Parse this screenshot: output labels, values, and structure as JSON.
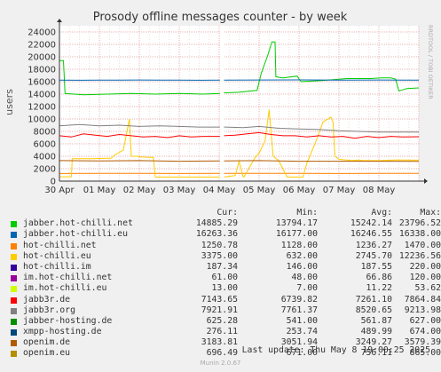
{
  "chart_data": {
    "type": "line",
    "title": "Prosody offline messages counter - by week",
    "ylabel": "users",
    "ylim": [
      0,
      25000
    ],
    "yticks": [
      0,
      2000,
      4000,
      6000,
      8000,
      10000,
      12000,
      14000,
      16000,
      18000,
      20000,
      22000,
      24000
    ],
    "ytick_labels": [
      "0",
      "2000",
      "4000",
      "6000",
      "8000",
      "10000",
      "12000",
      "14000",
      "16000",
      "18000",
      "20000",
      "22000",
      "24000"
    ],
    "xlim": [
      0,
      9
    ],
    "xtick_labels": [
      "30 Apr",
      "01 May",
      "02 May",
      "03 May",
      "04 May",
      "05 May",
      "06 May",
      "07 May",
      "08 May"
    ],
    "gap": [
      4.02,
      4.12
    ],
    "grid": true,
    "columns": [
      "Cur:",
      "Min:",
      "Avg:",
      "Max:"
    ],
    "series": [
      {
        "name": "jabber.hot-chilli.net",
        "color": "#00cc00",
        "cur": "14885.29",
        "min": "13794.17",
        "avg": "15242.14",
        "max": "23796.52",
        "x": [
          0,
          0.06,
          0.1,
          0.14,
          0.6,
          1.2,
          1.8,
          2.4,
          3.0,
          3.6,
          4.02,
          4.12,
          4.5,
          4.95,
          5.05,
          5.22,
          5.32,
          5.4,
          5.42,
          5.5,
          5.6,
          5.95,
          6.05,
          6.6,
          7.2,
          7.8,
          8.05,
          8.3,
          8.42,
          8.5,
          8.55,
          8.7,
          9
        ],
        "y": [
          19400,
          19400,
          19400,
          14100,
          13900,
          14000,
          14100,
          14000,
          14100,
          14000,
          14100,
          14200,
          14300,
          14600,
          17300,
          20300,
          22400,
          22400,
          16800,
          16700,
          16600,
          16900,
          16000,
          16200,
          16500,
          16500,
          16600,
          16600,
          16400,
          14500,
          14600,
          14900,
          15000
        ]
      },
      {
        "name": "jabber.hot-chilli.eu",
        "color": "#0066b3",
        "cur": "16263.36",
        "min": "16177.00",
        "avg": "16246.55",
        "max": "16338.00",
        "x": [
          0,
          0.5,
          1,
          1.5,
          2,
          2.5,
          3,
          3.5,
          4.02,
          4.12,
          5,
          6,
          7,
          8,
          8.7,
          9
        ],
        "y": [
          16250,
          16230,
          16260,
          16240,
          16270,
          16250,
          16240,
          16230,
          16250,
          16260,
          16270,
          16280,
          16260,
          16270,
          16260,
          16260
        ]
      },
      {
        "name": "hot-chilli.net",
        "color": "#ff8000",
        "cur": "1250.78",
        "min": "1128.00",
        "avg": "1236.27",
        "max": "1470.00",
        "x": [
          0,
          1,
          2,
          3,
          4.02,
          4.12,
          5,
          6,
          7,
          8,
          9
        ],
        "y": [
          1230,
          1240,
          1250,
          1230,
          1240,
          1250,
          1260,
          1240,
          1230,
          1250,
          1250
        ]
      },
      {
        "name": "hot-chilli.eu",
        "color": "#ffcc00",
        "cur": "3375.00",
        "min": "632.00",
        "avg": "2745.70",
        "max": "12236.56",
        "x": [
          0,
          0.3,
          0.32,
          0.8,
          1.3,
          1.38,
          1.6,
          1.75,
          1.8,
          1.95,
          2.0,
          2.35,
          2.4,
          4.02,
          4.12,
          4.4,
          4.5,
          4.6,
          4.62,
          4.9,
          5.0,
          5.15,
          5.25,
          5.35,
          5.45,
          5.5,
          5.7,
          5.95,
          6.1,
          6.2,
          6.4,
          6.6,
          6.8,
          6.85,
          6.9,
          7.0,
          7.2,
          7.3,
          7.5,
          7.6,
          8.0,
          8.4,
          8.7,
          8.8,
          9
        ],
        "y": [
          700,
          700,
          3600,
          3600,
          3700,
          4200,
          5000,
          10000,
          4000,
          4000,
          3900,
          3800,
          650,
          650,
          650,
          900,
          3200,
          700,
          650,
          3800,
          4500,
          6500,
          11500,
          4000,
          3500,
          3200,
          650,
          650,
          650,
          3000,
          6000,
          9500,
          10300,
          9500,
          4000,
          3500,
          3400,
          3300,
          3400,
          3300,
          3300,
          3400,
          3400,
          3375,
          3375
        ]
      },
      {
        "name": "hot-chilli.im",
        "color": "#330099",
        "cur": "187.34",
        "min": "146.00",
        "avg": "187.55",
        "max": "220.00",
        "x": [
          0,
          9
        ],
        "y": [
          187,
          187
        ]
      },
      {
        "name": "im.hot-chilli.net",
        "color": "#990099",
        "cur": "61.00",
        "min": "48.00",
        "avg": "66.86",
        "max": "120.00",
        "x": [
          0,
          9
        ],
        "y": [
          62,
          62
        ]
      },
      {
        "name": "im.hot-chilli.eu",
        "color": "#ccff00",
        "cur": "13.00",
        "min": "7.00",
        "avg": "11.22",
        "max": "53.62",
        "x": [
          0,
          9
        ],
        "y": [
          12,
          12
        ]
      },
      {
        "name": "jabb3r.de",
        "color": "#ff0000",
        "cur": "7143.65",
        "min": "6739.82",
        "avg": "7261.10",
        "max": "7864.84",
        "x": [
          0,
          0.3,
          0.6,
          0.9,
          1.2,
          1.5,
          1.8,
          2.1,
          2.4,
          2.7,
          3.0,
          3.3,
          3.6,
          4.02,
          4.12,
          4.4,
          4.7,
          5.0,
          5.3,
          5.6,
          5.9,
          6.2,
          6.5,
          6.8,
          7.1,
          7.4,
          7.7,
          8.0,
          8.3,
          8.6,
          9
        ],
        "y": [
          7300,
          7100,
          7600,
          7400,
          7200,
          7500,
          7300,
          7100,
          7200,
          7000,
          7300,
          7100,
          7200,
          7200,
          7300,
          7400,
          7600,
          7800,
          7500,
          7300,
          7300,
          7100,
          7300,
          7100,
          7200,
          6900,
          7200,
          7000,
          7200,
          7100,
          7143
        ]
      },
      {
        "name": "jabb3r.org",
        "color": "#808080",
        "cur": "7921.91",
        "min": "7761.37",
        "avg": "8520.65",
        "max": "9213.98",
        "x": [
          0,
          0.5,
          1,
          1.5,
          2,
          2.5,
          3,
          3.5,
          4.02,
          4.12,
          4.6,
          5,
          5.5,
          6,
          6.5,
          7,
          7.5,
          8,
          8.5,
          9
        ],
        "y": [
          8900,
          9100,
          8900,
          9000,
          8800,
          8900,
          8800,
          8700,
          8700,
          8700,
          8600,
          8800,
          8500,
          8400,
          8300,
          8100,
          8000,
          7900,
          7900,
          7900
        ]
      },
      {
        "name": "jabber-hosting.de",
        "color": "#008f00",
        "cur": "625.28",
        "min": "541.00",
        "avg": "561.87",
        "max": "627.00",
        "x": [
          0,
          9
        ],
        "y": [
          600,
          600
        ]
      },
      {
        "name": "xmpp-hosting.de",
        "color": "#00487d",
        "cur": "276.11",
        "min": "253.74",
        "avg": "489.99",
        "max": "674.00",
        "x": [
          0,
          9
        ],
        "y": [
          276,
          276
        ]
      },
      {
        "name": "openim.de",
        "color": "#b35a00",
        "cur": "3183.81",
        "min": "3051.94",
        "avg": "3249.27",
        "max": "3579.39",
        "x": [
          0,
          1,
          2,
          3,
          4.02,
          4.12,
          5,
          6,
          7,
          8,
          9
        ],
        "y": [
          3300,
          3250,
          3300,
          3200,
          3250,
          3250,
          3300,
          3200,
          3200,
          3200,
          3183
        ]
      },
      {
        "name": "openim.eu",
        "color": "#b38f00",
        "cur": "696.49",
        "min": "671.00",
        "avg": "756.11",
        "max": "865.00",
        "x": [
          0,
          9
        ],
        "y": [
          700,
          700
        ]
      }
    ]
  },
  "footer": {
    "last_update": "Last update: Thu May  8 19:00:25 2025",
    "generator": "Munin 2.0.67",
    "watermark": "RRDTOOL / TOBI OETIKER"
  }
}
